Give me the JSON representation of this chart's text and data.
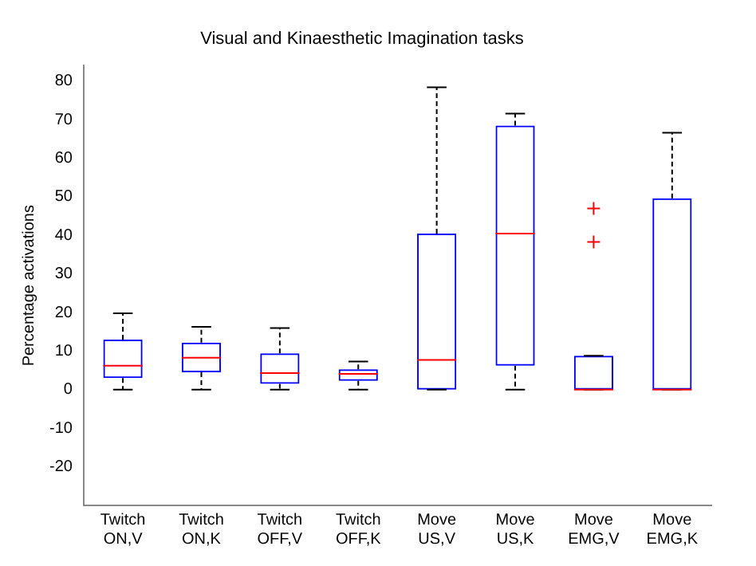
{
  "chart_data": {
    "type": "box",
    "title": "Visual and Kinaesthetic Imagination tasks",
    "ylabel": "Percentage activations",
    "categories": [
      "Twitch ON,V",
      "Twitch ON,K",
      "Twitch OFF,V",
      "Twitch OFF,K",
      "Move US,V",
      "Move US,K",
      "Move EMG,V",
      "Move EMG,K"
    ],
    "series": [
      {
        "color": "#0000ff",
        "boxes": [
          {
            "low": 0,
            "q1": 3,
            "median": 6.2,
            "q3": 13,
            "high": 19.8
          },
          {
            "low": 0,
            "q1": 4.5,
            "median": 8.3,
            "q3": 12.2,
            "high": 16.3
          },
          {
            "low": 0,
            "q1": 1.5,
            "median": 4.3,
            "q3": 9.4,
            "high": 16
          },
          {
            "low": 0,
            "q1": 2.3,
            "median": 4.1,
            "q3": 5.3,
            "high": 7.3
          },
          {
            "low": 0,
            "q1": 0,
            "median": 7.7,
            "q3": 40.5,
            "high": 78.4
          },
          {
            "low": 0,
            "q1": 6.2,
            "median": 40.5,
            "q3": 68.5,
            "high": 71.6
          },
          {
            "low": 0,
            "q1": 0,
            "median": 0,
            "q3": 8.8,
            "high": 8.8,
            "outliers": [
              47,
              38.3
            ]
          },
          {
            "low": 0,
            "q1": 0,
            "median": 0,
            "q3": 49.6,
            "high": 66.6
          }
        ]
      }
    ],
    "ylim": [
      -30,
      84
    ],
    "yticks": [
      -20,
      -10,
      0,
      10,
      20,
      30,
      40,
      50,
      60,
      70,
      80
    ],
    "grid": false,
    "legend": false
  }
}
